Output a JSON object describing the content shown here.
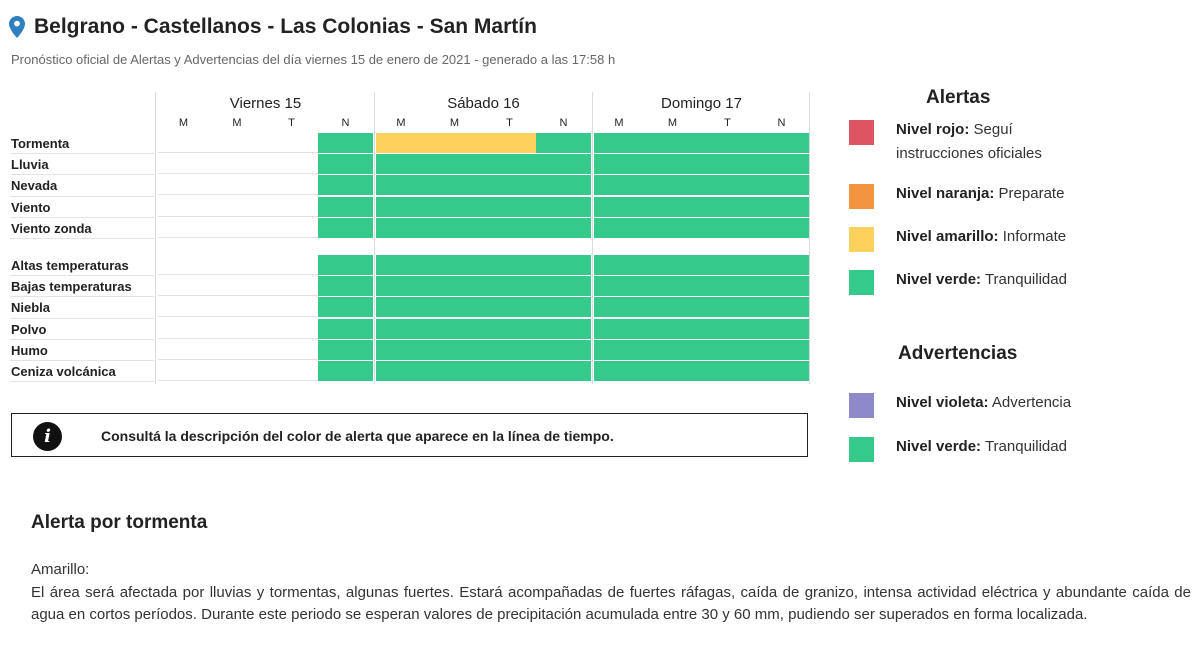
{
  "header": {
    "title": "Belgrano - Castellanos - Las Colonias - San Martín",
    "subtitle": "Pronóstico oficial de Alertas y Advertencias del día viernes 15 de enero de 2021 - generado a las 17:58 h"
  },
  "colors": {
    "rojo": "#dd5563",
    "naranja": "#f3953e",
    "amarillo": "#fdd25c",
    "verde": "#35c98c",
    "violeta": "#8e89c8",
    "empty": "#ffffff"
  },
  "timeline": {
    "days": [
      {
        "label": "Viernes 15",
        "periods": [
          "M",
          "M",
          "T",
          "N"
        ]
      },
      {
        "label": "Sábado 16",
        "periods": [
          "M",
          "M",
          "T",
          "N"
        ]
      },
      {
        "label": "Domingo 17",
        "periods": [
          "M",
          "M",
          "T",
          "N"
        ]
      }
    ],
    "alertas": [
      {
        "label": "Tormenta",
        "levels": [
          "none",
          "none",
          "none",
          "verde",
          "amarillo",
          "amarillo",
          "amarillo",
          "verde",
          "verde",
          "verde",
          "verde",
          "verde"
        ]
      },
      {
        "label": "Lluvia",
        "levels": [
          "none",
          "none",
          "none",
          "verde",
          "verde",
          "verde",
          "verde",
          "verde",
          "verde",
          "verde",
          "verde",
          "verde"
        ]
      },
      {
        "label": "Nevada",
        "levels": [
          "none",
          "none",
          "none",
          "verde",
          "verde",
          "verde",
          "verde",
          "verde",
          "verde",
          "verde",
          "verde",
          "verde"
        ]
      },
      {
        "label": "Viento",
        "levels": [
          "none",
          "none",
          "none",
          "verde",
          "verde",
          "verde",
          "verde",
          "verde",
          "verde",
          "verde",
          "verde",
          "verde"
        ]
      },
      {
        "label": "Viento zonda",
        "levels": [
          "none",
          "none",
          "none",
          "verde",
          "verde",
          "verde",
          "verde",
          "verde",
          "verde",
          "verde",
          "verde",
          "verde"
        ]
      }
    ],
    "advertencias": [
      {
        "label": "Altas temperaturas",
        "levels": [
          "none",
          "none",
          "none",
          "verde",
          "verde",
          "verde",
          "verde",
          "verde",
          "verde",
          "verde",
          "verde",
          "verde"
        ]
      },
      {
        "label": "Bajas temperaturas",
        "levels": [
          "none",
          "none",
          "none",
          "verde",
          "verde",
          "verde",
          "verde",
          "verde",
          "verde",
          "verde",
          "verde",
          "verde"
        ]
      },
      {
        "label": "Niebla",
        "levels": [
          "none",
          "none",
          "none",
          "verde",
          "verde",
          "verde",
          "verde",
          "verde",
          "verde",
          "verde",
          "verde",
          "verde"
        ]
      },
      {
        "label": "Polvo",
        "levels": [
          "none",
          "none",
          "none",
          "verde",
          "verde",
          "verde",
          "verde",
          "verde",
          "verde",
          "verde",
          "verde",
          "verde"
        ]
      },
      {
        "label": "Humo",
        "levels": [
          "none",
          "none",
          "none",
          "verde",
          "verde",
          "verde",
          "verde",
          "verde",
          "verde",
          "verde",
          "verde",
          "verde"
        ]
      },
      {
        "label": "Ceniza volcánica",
        "levels": [
          "none",
          "none",
          "none",
          "verde",
          "verde",
          "verde",
          "verde",
          "verde",
          "verde",
          "verde",
          "verde",
          "verde"
        ]
      }
    ]
  },
  "info": {
    "icon": "info-icon",
    "text": "Consultá la descripción del color de alerta que aparece en la línea de tiempo."
  },
  "legend": {
    "alertas_title": "Alertas",
    "alertas": [
      {
        "name": "Nivel rojo:",
        "desc": "Seguí instrucciones oficiales",
        "color": "rojo"
      },
      {
        "name": "Nivel naranja:",
        "desc": "Preparate",
        "color": "naranja"
      },
      {
        "name": "Nivel amarillo:",
        "desc": "Informate",
        "color": "amarillo"
      },
      {
        "name": "Nivel verde:",
        "desc": "Tranquilidad",
        "color": "verde"
      }
    ],
    "advertencias_title": "Advertencias",
    "advertencias": [
      {
        "name": "Nivel violeta:",
        "desc": "Advertencia",
        "color": "violeta"
      },
      {
        "name": "Nivel verde:",
        "desc": "Tranquilidad",
        "color": "verde"
      }
    ]
  },
  "description": {
    "title": "Alerta por tormenta",
    "level": "Amarillo:",
    "body": "El área será afectada por lluvias y tormentas, algunas fuertes. Estará acompañadas de fuertes ráfagas, caída de granizo, intensa actividad eléctrica y abundante caída de agua en cortos períodos. Durante este periodo se esperan valores de precipitación acumulada entre 30 y 60 mm, pudiendo ser superados en forma localizada."
  }
}
